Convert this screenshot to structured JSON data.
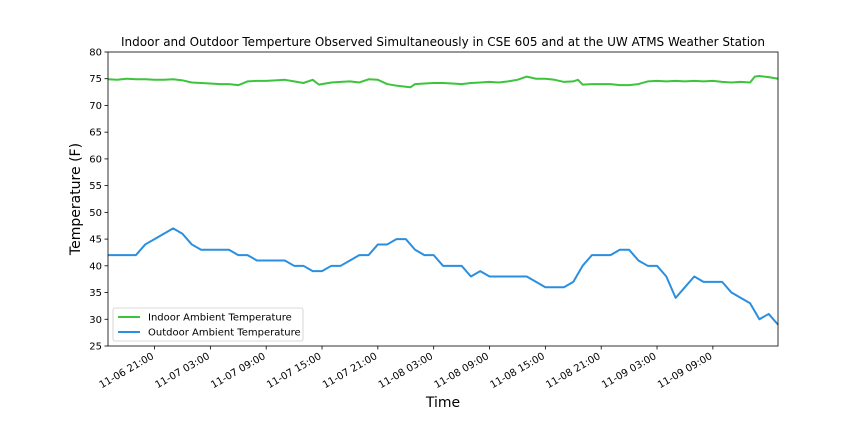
{
  "chart_data": {
    "type": "line",
    "title": "Indoor and Outdoor Temperture Observed Simultaneously in CSE 605 and at the UW ATMS Weather Station",
    "xlabel": "Time",
    "ylabel": "Temperature (F)",
    "xlim": [
      "2024-11-06 16:00",
      "2024-11-09 16:00"
    ],
    "ylim": [
      25,
      80
    ],
    "yticks": [
      25,
      30,
      35,
      40,
      45,
      50,
      55,
      60,
      65,
      70,
      75,
      80
    ],
    "xticks": [
      {
        "t": "2024-11-06 21:00",
        "label": "11-06 21:00"
      },
      {
        "t": "2024-11-07 03:00",
        "label": "11-07 03:00"
      },
      {
        "t": "2024-11-07 09:00",
        "label": "11-07 09:00"
      },
      {
        "t": "2024-11-07 15:00",
        "label": "11-07 15:00"
      },
      {
        "t": "2024-11-07 21:00",
        "label": "11-07 21:00"
      },
      {
        "t": "2024-11-08 03:00",
        "label": "11-08 03:00"
      },
      {
        "t": "2024-11-08 09:00",
        "label": "11-08 09:00"
      },
      {
        "t": "2024-11-08 15:00",
        "label": "11-08 15:00"
      },
      {
        "t": "2024-11-08 21:00",
        "label": "11-08 21:00"
      },
      {
        "t": "2024-11-09 03:00",
        "label": "11-09 03:00"
      },
      {
        "t": "2024-11-09 09:00",
        "label": "11-09 09:00"
      }
    ],
    "grid": false,
    "legend_position": "lower-left",
    "series": [
      {
        "name": "Indoor Ambient Temperature",
        "color": "#3cc43c",
        "points": [
          [
            "2024-11-06 16:00",
            74.9
          ],
          [
            "2024-11-06 17:00",
            74.8
          ],
          [
            "2024-11-06 18:00",
            75.0
          ],
          [
            "2024-11-06 19:00",
            74.9
          ],
          [
            "2024-11-06 20:00",
            74.9
          ],
          [
            "2024-11-06 21:00",
            74.8
          ],
          [
            "2024-11-06 22:00",
            74.8
          ],
          [
            "2024-11-06 23:00",
            74.9
          ],
          [
            "2024-11-07 00:00",
            74.7
          ],
          [
            "2024-11-07 01:00",
            74.3
          ],
          [
            "2024-11-07 02:00",
            74.2
          ],
          [
            "2024-11-07 03:00",
            74.1
          ],
          [
            "2024-11-07 04:00",
            74.0
          ],
          [
            "2024-11-07 05:00",
            74.0
          ],
          [
            "2024-11-07 06:00",
            73.8
          ],
          [
            "2024-11-07 07:00",
            74.5
          ],
          [
            "2024-11-07 08:00",
            74.6
          ],
          [
            "2024-11-07 09:00",
            74.6
          ],
          [
            "2024-11-07 10:00",
            74.7
          ],
          [
            "2024-11-07 11:00",
            74.8
          ],
          [
            "2024-11-07 12:00",
            74.5
          ],
          [
            "2024-11-07 13:00",
            74.2
          ],
          [
            "2024-11-07 14:00",
            74.8
          ],
          [
            "2024-11-07 14:40",
            73.9
          ],
          [
            "2024-11-07 16:00",
            74.3
          ],
          [
            "2024-11-07 17:00",
            74.4
          ],
          [
            "2024-11-07 18:00",
            74.5
          ],
          [
            "2024-11-07 19:00",
            74.3
          ],
          [
            "2024-11-07 20:00",
            74.9
          ],
          [
            "2024-11-07 21:00",
            74.8
          ],
          [
            "2024-11-07 22:00",
            74.0
          ],
          [
            "2024-11-07 23:00",
            73.7
          ],
          [
            "2024-11-08 00:00",
            73.5
          ],
          [
            "2024-11-08 00:30",
            73.4
          ],
          [
            "2024-11-08 01:00",
            74.0
          ],
          [
            "2024-11-08 02:00",
            74.1
          ],
          [
            "2024-11-08 03:00",
            74.2
          ],
          [
            "2024-11-08 04:00",
            74.2
          ],
          [
            "2024-11-08 05:00",
            74.1
          ],
          [
            "2024-11-08 06:00",
            74.0
          ],
          [
            "2024-11-08 07:00",
            74.2
          ],
          [
            "2024-11-08 08:00",
            74.3
          ],
          [
            "2024-11-08 09:00",
            74.4
          ],
          [
            "2024-11-08 10:00",
            74.3
          ],
          [
            "2024-11-08 11:00",
            74.5
          ],
          [
            "2024-11-08 12:00",
            74.8
          ],
          [
            "2024-11-08 13:00",
            75.4
          ],
          [
            "2024-11-08 14:00",
            75.0
          ],
          [
            "2024-11-08 15:00",
            75.0
          ],
          [
            "2024-11-08 16:00",
            74.8
          ],
          [
            "2024-11-08 17:00",
            74.4
          ],
          [
            "2024-11-08 18:00",
            74.5
          ],
          [
            "2024-11-08 18:30",
            74.8
          ],
          [
            "2024-11-08 19:00",
            73.9
          ],
          [
            "2024-11-08 20:00",
            74.0
          ],
          [
            "2024-11-08 21:00",
            74.0
          ],
          [
            "2024-11-08 22:00",
            74.0
          ],
          [
            "2024-11-08 23:00",
            73.8
          ],
          [
            "2024-11-09 00:00",
            73.8
          ],
          [
            "2024-11-09 01:00",
            74.0
          ],
          [
            "2024-11-09 02:00",
            74.5
          ],
          [
            "2024-11-09 03:00",
            74.6
          ],
          [
            "2024-11-09 04:00",
            74.5
          ],
          [
            "2024-11-09 05:00",
            74.6
          ],
          [
            "2024-11-09 06:00",
            74.5
          ],
          [
            "2024-11-09 07:00",
            74.6
          ],
          [
            "2024-11-09 08:00",
            74.5
          ],
          [
            "2024-11-09 09:00",
            74.6
          ],
          [
            "2024-11-09 10:00",
            74.4
          ],
          [
            "2024-11-09 11:00",
            74.3
          ],
          [
            "2024-11-09 12:00",
            74.4
          ],
          [
            "2024-11-09 13:00",
            74.3
          ],
          [
            "2024-11-09 13:30",
            75.4
          ],
          [
            "2024-11-09 14:00",
            75.5
          ],
          [
            "2024-11-09 15:00",
            75.3
          ],
          [
            "2024-11-09 16:00",
            75.0
          ]
        ]
      },
      {
        "name": "Outdoor Ambient Temperature",
        "color": "#2a8fe0",
        "points": [
          [
            "2024-11-06 16:00",
            42
          ],
          [
            "2024-11-06 17:00",
            42
          ],
          [
            "2024-11-06 18:00",
            42
          ],
          [
            "2024-11-06 19:00",
            42
          ],
          [
            "2024-11-06 20:00",
            44
          ],
          [
            "2024-11-06 21:00",
            45
          ],
          [
            "2024-11-06 22:00",
            46
          ],
          [
            "2024-11-06 23:00",
            47
          ],
          [
            "2024-11-07 00:00",
            46
          ],
          [
            "2024-11-07 01:00",
            44
          ],
          [
            "2024-11-07 02:00",
            43
          ],
          [
            "2024-11-07 03:00",
            43
          ],
          [
            "2024-11-07 04:00",
            43
          ],
          [
            "2024-11-07 05:00",
            43
          ],
          [
            "2024-11-07 06:00",
            42
          ],
          [
            "2024-11-07 07:00",
            42
          ],
          [
            "2024-11-07 08:00",
            41
          ],
          [
            "2024-11-07 09:00",
            41
          ],
          [
            "2024-11-07 10:00",
            41
          ],
          [
            "2024-11-07 11:00",
            41
          ],
          [
            "2024-11-07 12:00",
            40
          ],
          [
            "2024-11-07 13:00",
            40
          ],
          [
            "2024-11-07 14:00",
            39
          ],
          [
            "2024-11-07 15:00",
            39
          ],
          [
            "2024-11-07 16:00",
            40
          ],
          [
            "2024-11-07 17:00",
            40
          ],
          [
            "2024-11-07 18:00",
            41
          ],
          [
            "2024-11-07 19:00",
            42
          ],
          [
            "2024-11-07 20:00",
            42
          ],
          [
            "2024-11-07 21:00",
            44
          ],
          [
            "2024-11-07 22:00",
            44
          ],
          [
            "2024-11-07 23:00",
            45
          ],
          [
            "2024-11-08 00:00",
            45
          ],
          [
            "2024-11-08 01:00",
            43
          ],
          [
            "2024-11-08 02:00",
            42
          ],
          [
            "2024-11-08 03:00",
            42
          ],
          [
            "2024-11-08 04:00",
            40
          ],
          [
            "2024-11-08 05:00",
            40
          ],
          [
            "2024-11-08 06:00",
            40
          ],
          [
            "2024-11-08 07:00",
            38
          ],
          [
            "2024-11-08 08:00",
            39
          ],
          [
            "2024-11-08 09:00",
            38
          ],
          [
            "2024-11-08 10:00",
            38
          ],
          [
            "2024-11-08 11:00",
            38
          ],
          [
            "2024-11-08 12:00",
            38
          ],
          [
            "2024-11-08 13:00",
            38
          ],
          [
            "2024-11-08 14:00",
            37
          ],
          [
            "2024-11-08 15:00",
            36
          ],
          [
            "2024-11-08 16:00",
            36
          ],
          [
            "2024-11-08 17:00",
            36
          ],
          [
            "2024-11-08 18:00",
            37
          ],
          [
            "2024-11-08 19:00",
            40
          ],
          [
            "2024-11-08 20:00",
            42
          ],
          [
            "2024-11-08 21:00",
            42
          ],
          [
            "2024-11-08 22:00",
            42
          ],
          [
            "2024-11-08 23:00",
            43
          ],
          [
            "2024-11-09 00:00",
            43
          ],
          [
            "2024-11-09 01:00",
            41
          ],
          [
            "2024-11-09 02:00",
            40
          ],
          [
            "2024-11-09 03:00",
            40
          ],
          [
            "2024-11-09 04:00",
            38
          ],
          [
            "2024-11-09 05:00",
            34
          ],
          [
            "2024-11-09 06:00",
            36
          ],
          [
            "2024-11-09 07:00",
            38
          ],
          [
            "2024-11-09 08:00",
            37
          ],
          [
            "2024-11-09 09:00",
            37
          ],
          [
            "2024-11-09 10:00",
            37
          ],
          [
            "2024-11-09 11:00",
            35
          ],
          [
            "2024-11-09 12:00",
            34
          ],
          [
            "2024-11-09 13:00",
            33
          ],
          [
            "2024-11-09 14:00",
            30
          ],
          [
            "2024-11-09 15:00",
            31
          ],
          [
            "2024-11-09 16:00",
            29
          ]
        ]
      }
    ]
  }
}
